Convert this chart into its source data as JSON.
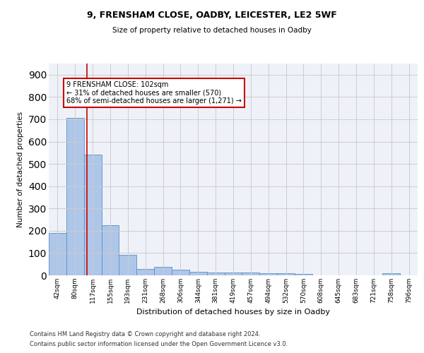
{
  "title1": "9, FRENSHAM CLOSE, OADBY, LEICESTER, LE2 5WF",
  "title2": "Size of property relative to detached houses in Oadby",
  "xlabel": "Distribution of detached houses by size in Oadby",
  "ylabel": "Number of detached properties",
  "categories": [
    "42sqm",
    "80sqm",
    "117sqm",
    "155sqm",
    "193sqm",
    "231sqm",
    "268sqm",
    "306sqm",
    "344sqm",
    "381sqm",
    "419sqm",
    "457sqm",
    "494sqm",
    "532sqm",
    "570sqm",
    "608sqm",
    "645sqm",
    "683sqm",
    "721sqm",
    "758sqm",
    "796sqm"
  ],
  "values": [
    190,
    707,
    540,
    225,
    91,
    28,
    37,
    25,
    16,
    13,
    13,
    13,
    9,
    9,
    7,
    0,
    0,
    0,
    0,
    9,
    0
  ],
  "bar_color": "#aec6e8",
  "bar_edge_color": "#5a8fc2",
  "vline_color": "#cc0000",
  "vline_x": 1.66,
  "annotation_text": "9 FRENSHAM CLOSE: 102sqm\n← 31% of detached houses are smaller (570)\n68% of semi-detached houses are larger (1,271) →",
  "annotation_box_color": "#cc0000",
  "ylim": [
    0,
    950
  ],
  "yticks": [
    0,
    100,
    200,
    300,
    400,
    500,
    600,
    700,
    800,
    900
  ],
  "grid_color": "#cccccc",
  "bg_color": "#eef2f8",
  "footer1": "Contains HM Land Registry data © Crown copyright and database right 2024.",
  "footer2": "Contains public sector information licensed under the Open Government Licence v3.0."
}
